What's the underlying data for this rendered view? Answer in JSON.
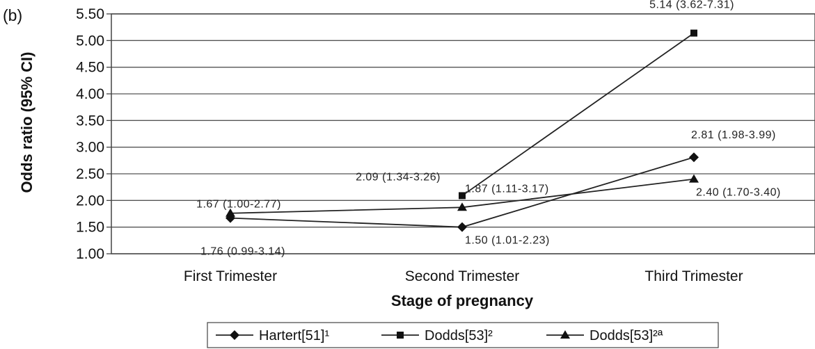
{
  "chart_data": {
    "type": "line",
    "panel_label": "(b)",
    "title": "",
    "xlabel": "Stage of pregnancy",
    "ylabel": "Odds ratio (95% CI)",
    "categories": [
      "First Trimester",
      "Second Trimester",
      "Third Trimester"
    ],
    "ylim": [
      1.0,
      5.5
    ],
    "yticks": [
      "1.00",
      "1.50",
      "2.00",
      "2.50",
      "3.00",
      "3.50",
      "4.00",
      "4.50",
      "5.00",
      "5.50"
    ],
    "grid": true,
    "legend_position": "bottom",
    "series": [
      {
        "name": "Hartert[51]¹",
        "marker": "diamond",
        "values": [
          1.67,
          1.5,
          2.81
        ],
        "labels": [
          "1.67 (1.00-2.77)",
          "1.50 (1.01-2.23)",
          "2.81 (1.98-3.99)"
        ]
      },
      {
        "name": "Dodds[53]²",
        "marker": "square",
        "values": [
          null,
          2.09,
          5.14
        ],
        "labels": [
          "",
          "2.09 (1.34-3.26)",
          "5.14 (3.62-7.31)"
        ]
      },
      {
        "name": "Dodds[53]²ª",
        "marker": "triangle",
        "values": [
          1.76,
          1.87,
          2.4
        ],
        "labels": [
          "1.76 (0.99-3.14)",
          "1.87 (1.11-3.17)",
          "2.40 (1.70-3.40)"
        ]
      }
    ]
  }
}
